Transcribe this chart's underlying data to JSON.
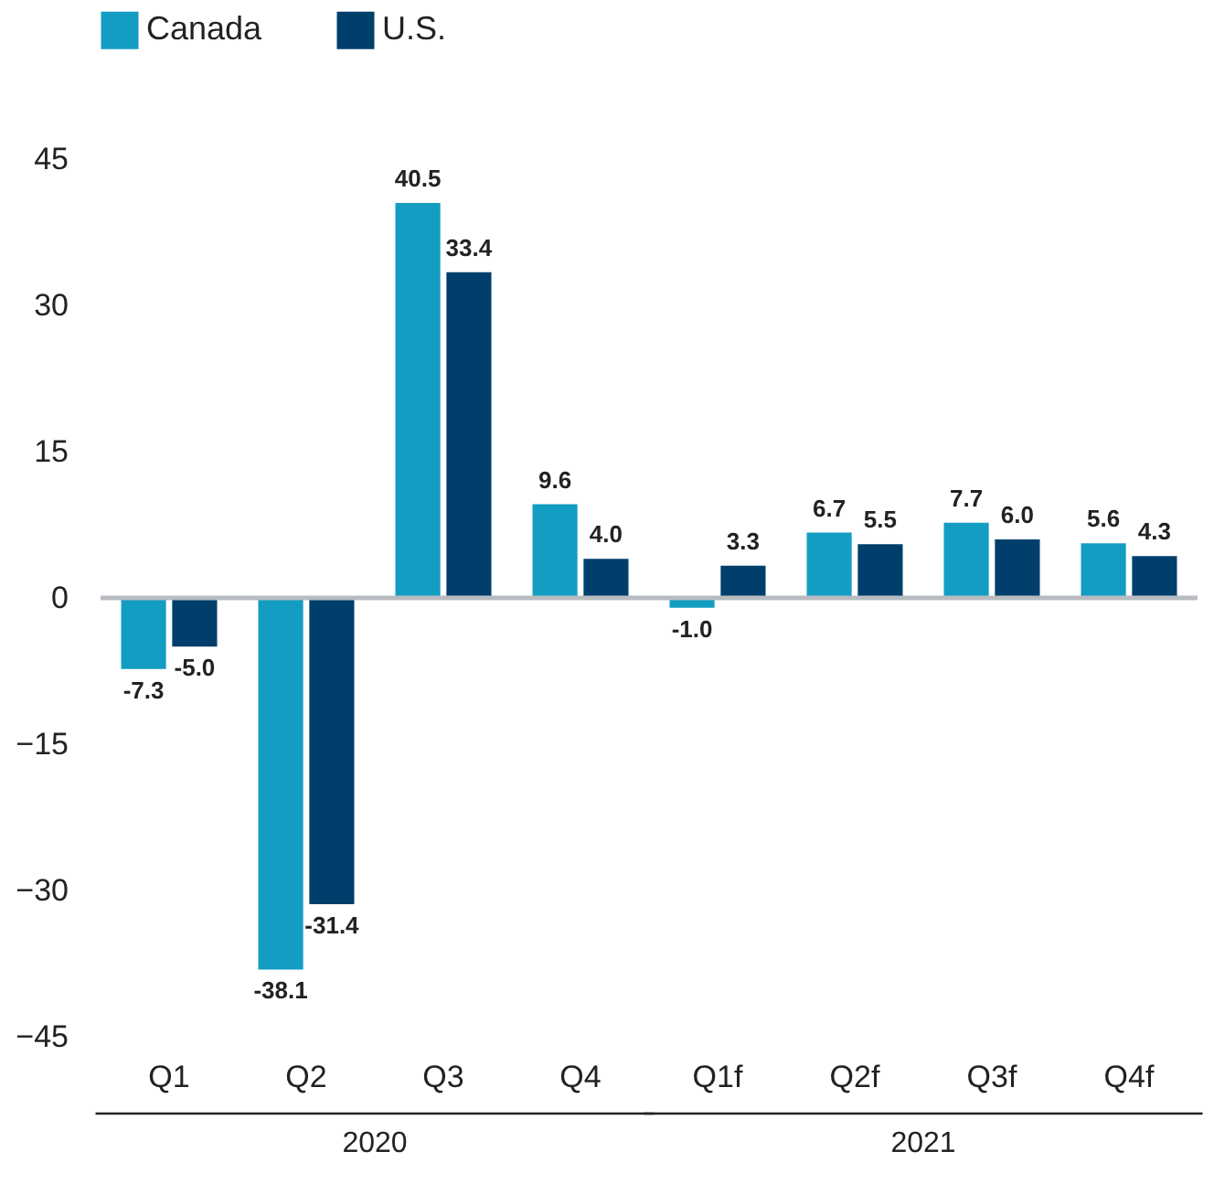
{
  "chart_data": {
    "type": "bar",
    "categories": [
      "Q1",
      "Q2",
      "Q3",
      "Q4",
      "Q1f",
      "Q2f",
      "Q3f",
      "Q4f"
    ],
    "series": [
      {
        "name": "Canada",
        "color": "#139dc2",
        "values": [
          -7.3,
          -38.1,
          40.5,
          9.6,
          -1.0,
          6.7,
          7.7,
          5.6
        ],
        "value_labels": [
          "-7.3",
          "-38.1",
          "40.5",
          "9.6",
          "-1.0",
          "6.7",
          "7.7",
          "5.6"
        ]
      },
      {
        "name": "U.S.",
        "color": "#003f6b",
        "values": [
          -5.0,
          -31.4,
          33.4,
          4.0,
          3.3,
          5.5,
          6.0,
          4.3
        ],
        "value_labels": [
          "-5.0",
          "-31.4",
          "33.4",
          "4.0",
          "3.3",
          "5.5",
          "6.0",
          "4.3"
        ]
      }
    ],
    "ylim": [
      -45,
      45
    ],
    "yticks": [
      -45,
      -30,
      -15,
      0,
      15,
      30,
      45
    ],
    "legend": "top left",
    "ref_lines": [
      {
        "axis": "y",
        "value": 0,
        "color": "#b8bcc0"
      }
    ],
    "annotations": [
      "2020",
      "2021"
    ]
  }
}
